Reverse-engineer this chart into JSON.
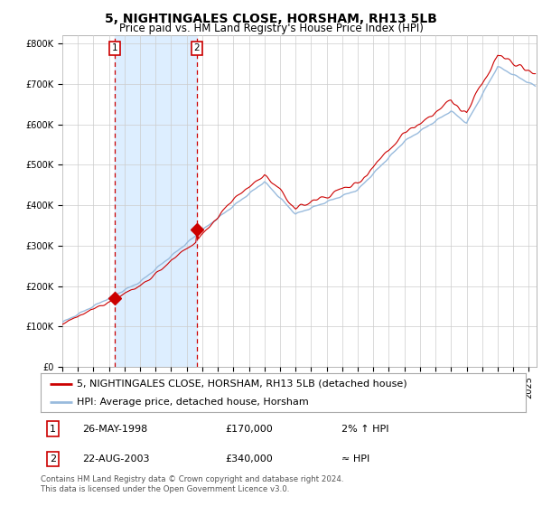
{
  "title": "5, NIGHTINGALES CLOSE, HORSHAM, RH13 5LB",
  "subtitle": "Price paid vs. HM Land Registry's House Price Index (HPI)",
  "ylabel_ticks": [
    "£0",
    "£100K",
    "£200K",
    "£300K",
    "£400K",
    "£500K",
    "£600K",
    "£700K",
    "£800K"
  ],
  "ytick_vals": [
    0,
    100000,
    200000,
    300000,
    400000,
    500000,
    600000,
    700000,
    800000
  ],
  "ylim": [
    0,
    820000
  ],
  "xlim_start": 1995.0,
  "xlim_end": 2025.5,
  "purchase1_x": 1998.38,
  "purchase1_y": 170000,
  "purchase2_x": 2003.64,
  "purchase2_y": 340000,
  "vline_color": "#cc0000",
  "line_color_red": "#cc0000",
  "line_color_blue": "#99bbdd",
  "shade_color": "#ddeeff",
  "background_color": "#ffffff",
  "grid_color": "#cccccc",
  "annotation1": {
    "num": "1",
    "date": "26-MAY-1998",
    "price": "£170,000",
    "hpi": "2% ↑ HPI"
  },
  "annotation2": {
    "num": "2",
    "date": "22-AUG-2003",
    "price": "£340,000",
    "hpi": "≈ HPI"
  },
  "legend_label_red": "5, NIGHTINGALES CLOSE, HORSHAM, RH13 5LB (detached house)",
  "legend_label_blue": "HPI: Average price, detached house, Horsham",
  "footer": "Contains HM Land Registry data © Crown copyright and database right 2024.\nThis data is licensed under the Open Government Licence v3.0.",
  "title_fontsize": 10,
  "subtitle_fontsize": 8.5,
  "tick_fontsize": 7,
  "legend_fontsize": 8,
  "annotation_fontsize": 8
}
